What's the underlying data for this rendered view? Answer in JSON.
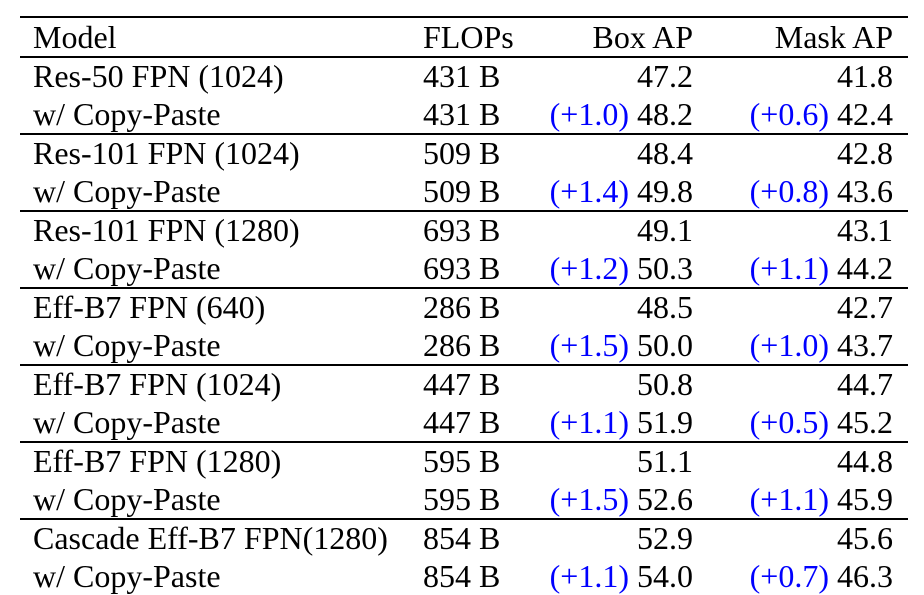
{
  "table": {
    "columns": [
      {
        "label": "Model"
      },
      {
        "label": "FLOPs"
      },
      {
        "label": "Box AP"
      },
      {
        "label": "Mask AP"
      }
    ],
    "colors": {
      "delta_blue": "#0000FF",
      "text": "#000000",
      "rule": "#000000",
      "background": "#FFFFFF"
    },
    "groups": [
      {
        "rows": [
          {
            "model": "Res-50 FPN (1024)",
            "flops": "431 B",
            "box_ap": {
              "delta": "",
              "value": "47.2"
            },
            "mask_ap": {
              "delta": "",
              "value": "41.8"
            }
          },
          {
            "model": "w/ Copy-Paste",
            "flops": "431 B",
            "box_ap": {
              "delta": "(+1.0)",
              "value": "48.2"
            },
            "mask_ap": {
              "delta": "(+0.6)",
              "value": "42.4"
            }
          }
        ]
      },
      {
        "rows": [
          {
            "model": "Res-101 FPN (1024)",
            "flops": "509 B",
            "box_ap": {
              "delta": "",
              "value": "48.4"
            },
            "mask_ap": {
              "delta": "",
              "value": "42.8"
            }
          },
          {
            "model": "w/ Copy-Paste",
            "flops": "509 B",
            "box_ap": {
              "delta": "(+1.4)",
              "value": "49.8"
            },
            "mask_ap": {
              "delta": "(+0.8)",
              "value": "43.6"
            }
          }
        ]
      },
      {
        "rows": [
          {
            "model": "Res-101 FPN (1280)",
            "flops": "693 B",
            "box_ap": {
              "delta": "",
              "value": "49.1"
            },
            "mask_ap": {
              "delta": "",
              "value": "43.1"
            }
          },
          {
            "model": "w/ Copy-Paste",
            "flops": "693 B",
            "box_ap": {
              "delta": "(+1.2)",
              "value": "50.3"
            },
            "mask_ap": {
              "delta": "(+1.1)",
              "value": "44.2"
            }
          }
        ]
      },
      {
        "rows": [
          {
            "model": "Eff-B7 FPN (640)",
            "flops": "286 B",
            "box_ap": {
              "delta": "",
              "value": "48.5"
            },
            "mask_ap": {
              "delta": "",
              "value": "42.7"
            }
          },
          {
            "model": "w/ Copy-Paste",
            "flops": "286 B",
            "box_ap": {
              "delta": "(+1.5)",
              "value": "50.0"
            },
            "mask_ap": {
              "delta": "(+1.0)",
              "value": "43.7"
            }
          }
        ]
      },
      {
        "rows": [
          {
            "model": "Eff-B7 FPN (1024)",
            "flops": "447 B",
            "box_ap": {
              "delta": "",
              "value": "50.8"
            },
            "mask_ap": {
              "delta": "",
              "value": "44.7"
            }
          },
          {
            "model": "w/ Copy-Paste",
            "flops": "447 B",
            "box_ap": {
              "delta": "(+1.1)",
              "value": "51.9"
            },
            "mask_ap": {
              "delta": "(+0.5)",
              "value": "45.2"
            }
          }
        ]
      },
      {
        "rows": [
          {
            "model": "Eff-B7 FPN (1280)",
            "flops": "595 B",
            "box_ap": {
              "delta": "",
              "value": "51.1"
            },
            "mask_ap": {
              "delta": "",
              "value": "44.8"
            }
          },
          {
            "model": "w/ Copy-Paste",
            "flops": "595 B",
            "box_ap": {
              "delta": "(+1.5)",
              "value": "52.6"
            },
            "mask_ap": {
              "delta": "(+1.1)",
              "value": "45.9"
            }
          }
        ]
      },
      {
        "rows": [
          {
            "model": "Cascade Eff-B7 FPN(1280)",
            "flops": "854 B",
            "box_ap": {
              "delta": "",
              "value": "52.9"
            },
            "mask_ap": {
              "delta": "",
              "value": "45.6"
            }
          },
          {
            "model": "w/ Copy-Paste",
            "flops": "854 B",
            "box_ap": {
              "delta": "(+1.1)",
              "value": "54.0"
            },
            "mask_ap": {
              "delta": "(+0.7)",
              "value": "46.3"
            }
          }
        ]
      }
    ]
  }
}
